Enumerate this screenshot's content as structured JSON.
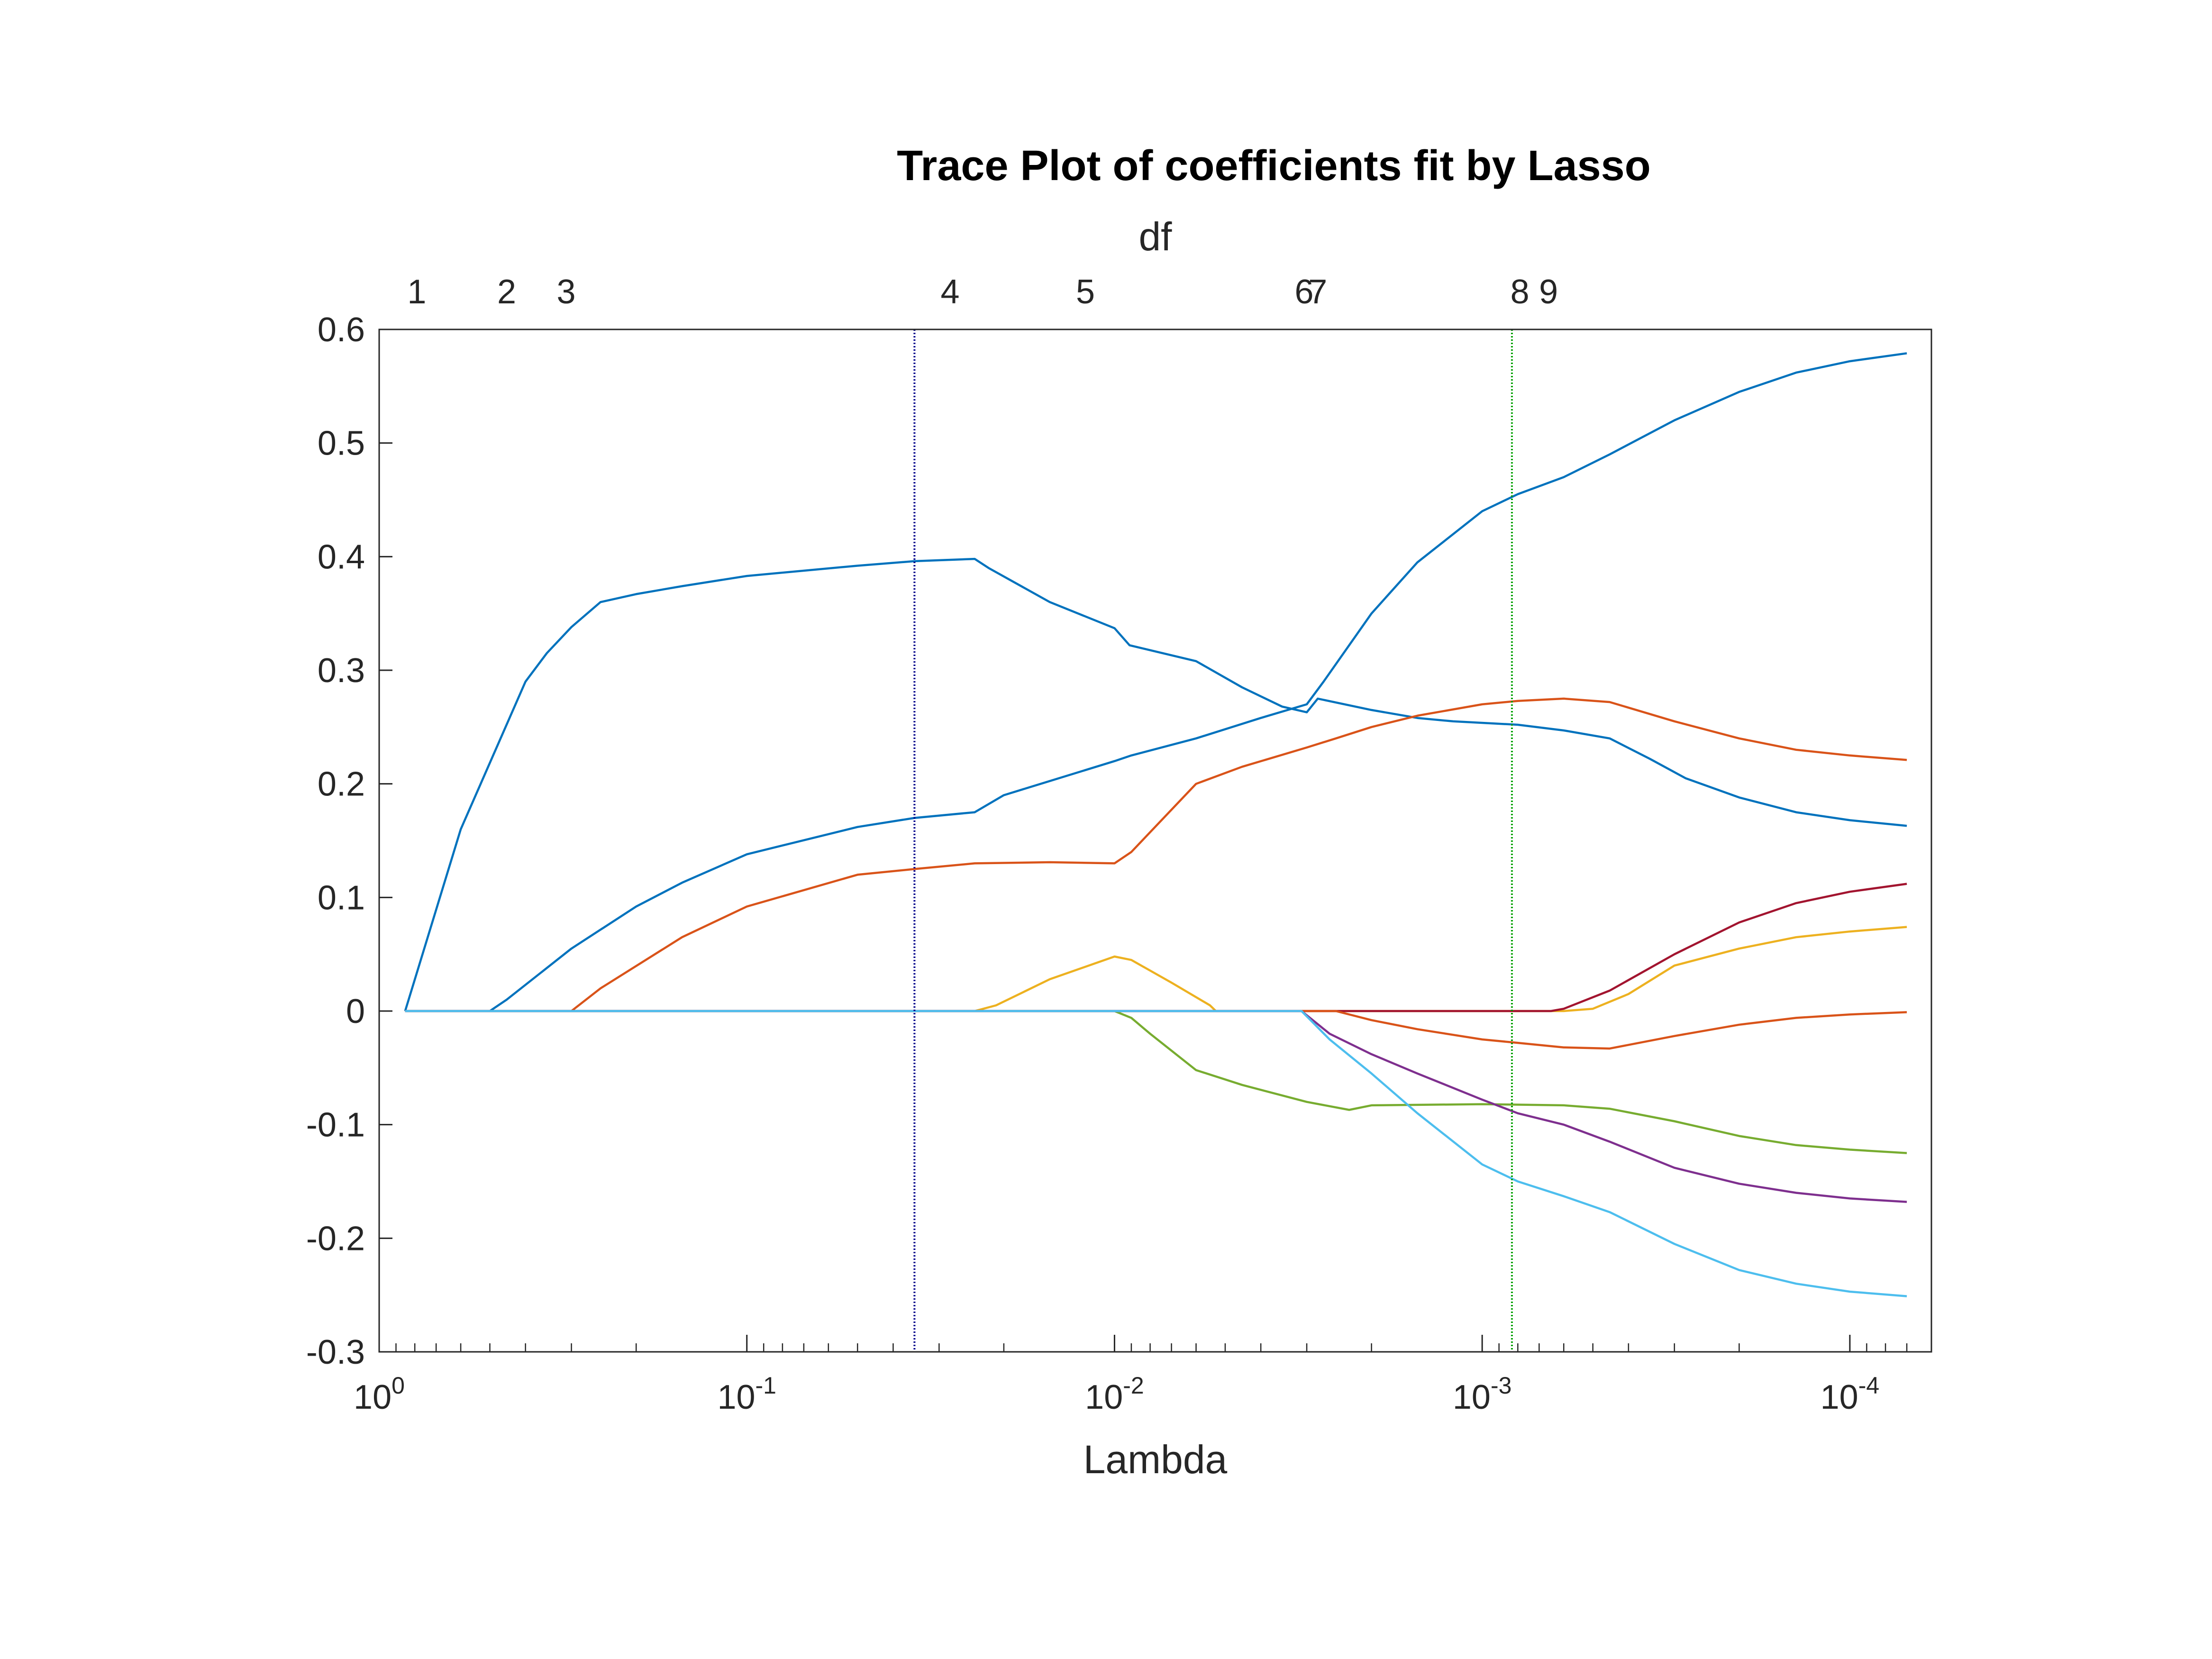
{
  "chart_data": {
    "type": "line",
    "title": "Trace Plot of coefficients fit by Lasso",
    "xlabel": "Lambda",
    "top_axis_label": "df",
    "x_scale": "log",
    "x_reversed": true,
    "xlim": [
      1,
      6e-05
    ],
    "ylim": [
      -0.3,
      0.6
    ],
    "x_ticks": [
      {
        "value": 1,
        "base": "10",
        "exp": "0"
      },
      {
        "value": 0.1,
        "base": "10",
        "exp": "-1"
      },
      {
        "value": 0.01,
        "base": "10",
        "exp": "-2"
      },
      {
        "value": 0.001,
        "base": "10",
        "exp": "-3"
      },
      {
        "value": 0.0001,
        "base": "10",
        "exp": "-4"
      }
    ],
    "y_ticks": [
      {
        "value": 0.6,
        "label": "0.6"
      },
      {
        "value": 0.5,
        "label": "0.5"
      },
      {
        "value": 0.4,
        "label": "0.4"
      },
      {
        "value": 0.3,
        "label": "0.3"
      },
      {
        "value": 0.2,
        "label": "0.2"
      },
      {
        "value": 0.1,
        "label": "0.1"
      },
      {
        "value": 0,
        "label": "0"
      },
      {
        "value": -0.1,
        "label": "-0.1"
      },
      {
        "value": -0.2,
        "label": "-0.2"
      },
      {
        "value": -0.3,
        "label": "-0.3"
      }
    ],
    "df_ticks": [
      {
        "lambda": 0.79,
        "label": "1"
      },
      {
        "lambda": 0.45,
        "label": "2"
      },
      {
        "lambda": 0.31,
        "label": "3"
      },
      {
        "lambda": 0.028,
        "label": "4"
      },
      {
        "lambda": 0.012,
        "label": "5"
      },
      {
        "lambda": 0.00305,
        "label": "6"
      },
      {
        "lambda": 0.0028,
        "label": "7"
      },
      {
        "lambda": 0.00079,
        "label": "8"
      },
      {
        "lambda": 0.00066,
        "label": "9"
      }
    ],
    "vlines": [
      {
        "lambda": 0.035,
        "color": "#00008b"
      },
      {
        "lambda": 0.00083,
        "color": "#00a000"
      }
    ],
    "series": [
      {
        "color": "#0072bd",
        "points": [
          [
            0.85,
            0
          ],
          [
            0.6,
            0.16
          ],
          [
            0.4,
            0.29
          ],
          [
            0.35,
            0.315
          ],
          [
            0.3,
            0.338
          ],
          [
            0.25,
            0.36
          ],
          [
            0.2,
            0.367
          ],
          [
            0.15,
            0.374
          ],
          [
            0.1,
            0.383
          ],
          [
            0.05,
            0.392
          ],
          [
            0.035,
            0.396
          ],
          [
            0.024,
            0.398
          ],
          [
            0.022,
            0.39
          ],
          [
            0.015,
            0.36
          ],
          [
            0.01,
            0.337
          ],
          [
            0.0091,
            0.322
          ],
          [
            0.006,
            0.308
          ],
          [
            0.0045,
            0.285
          ],
          [
            0.0035,
            0.268
          ],
          [
            0.003,
            0.263
          ],
          [
            0.0028,
            0.275
          ],
          [
            0.002,
            0.265
          ],
          [
            0.0015,
            0.258
          ],
          [
            0.0012,
            0.255
          ],
          [
            0.0008,
            0.252
          ],
          [
            0.0006,
            0.247
          ],
          [
            0.00045,
            0.24
          ],
          [
            0.00035,
            0.222
          ],
          [
            0.00028,
            0.205
          ],
          [
            0.0002,
            0.188
          ],
          [
            0.00014,
            0.175
          ],
          [
            0.0001,
            0.168
          ],
          [
            7e-05,
            0.163
          ]
        ]
      },
      {
        "color": "#0072bd",
        "points": [
          [
            0.85,
            0
          ],
          [
            0.5,
            0
          ],
          [
            0.45,
            0.01
          ],
          [
            0.3,
            0.055
          ],
          [
            0.2,
            0.092
          ],
          [
            0.15,
            0.113
          ],
          [
            0.1,
            0.138
          ],
          [
            0.05,
            0.162
          ],
          [
            0.035,
            0.17
          ],
          [
            0.024,
            0.175
          ],
          [
            0.02,
            0.19
          ],
          [
            0.01,
            0.22
          ],
          [
            0.009,
            0.225
          ],
          [
            0.006,
            0.24
          ],
          [
            0.004,
            0.258
          ],
          [
            0.003,
            0.27
          ],
          [
            0.0027,
            0.29
          ],
          [
            0.002,
            0.35
          ],
          [
            0.0015,
            0.395
          ],
          [
            0.001,
            0.44
          ],
          [
            0.0008,
            0.455
          ],
          [
            0.0006,
            0.47
          ],
          [
            0.00045,
            0.49
          ],
          [
            0.0003,
            0.52
          ],
          [
            0.0002,
            0.545
          ],
          [
            0.00014,
            0.562
          ],
          [
            0.0001,
            0.572
          ],
          [
            7e-05,
            0.579
          ]
        ]
      },
      {
        "color": "#d95319",
        "points": [
          [
            0.85,
            0
          ],
          [
            0.3,
            0
          ],
          [
            0.25,
            0.02
          ],
          [
            0.15,
            0.065
          ],
          [
            0.1,
            0.092
          ],
          [
            0.05,
            0.12
          ],
          [
            0.035,
            0.125
          ],
          [
            0.024,
            0.13
          ],
          [
            0.015,
            0.131
          ],
          [
            0.01,
            0.13
          ],
          [
            0.009,
            0.14
          ],
          [
            0.006,
            0.2
          ],
          [
            0.0045,
            0.215
          ],
          [
            0.003,
            0.232
          ],
          [
            0.0025,
            0.24
          ],
          [
            0.002,
            0.25
          ],
          [
            0.0015,
            0.26
          ],
          [
            0.001,
            0.27
          ],
          [
            0.0008,
            0.273
          ],
          [
            0.0006,
            0.275
          ],
          [
            0.00045,
            0.272
          ],
          [
            0.0003,
            0.255
          ],
          [
            0.0002,
            0.24
          ],
          [
            0.00014,
            0.23
          ],
          [
            0.0001,
            0.225
          ],
          [
            7e-05,
            0.221
          ]
        ]
      },
      {
        "color": "#edb120",
        "points": [
          [
            0.85,
            0
          ],
          [
            0.024,
            0
          ],
          [
            0.021,
            0.005
          ],
          [
            0.015,
            0.028
          ],
          [
            0.01,
            0.048
          ],
          [
            0.009,
            0.045
          ],
          [
            0.007,
            0.025
          ],
          [
            0.0055,
            0.005
          ],
          [
            0.0053,
            0
          ],
          [
            0.0006,
            0
          ],
          [
            0.0005,
            0.002
          ],
          [
            0.0004,
            0.015
          ],
          [
            0.0003,
            0.04
          ],
          [
            0.0002,
            0.055
          ],
          [
            0.00014,
            0.065
          ],
          [
            0.0001,
            0.07
          ],
          [
            7e-05,
            0.074
          ]
        ]
      },
      {
        "color": "#a2142f",
        "points": [
          [
            0.85,
            0
          ],
          [
            0.00065,
            0
          ],
          [
            0.0006,
            0.002
          ],
          [
            0.00045,
            0.018
          ],
          [
            0.0003,
            0.05
          ],
          [
            0.0002,
            0.078
          ],
          [
            0.00014,
            0.095
          ],
          [
            0.0001,
            0.105
          ],
          [
            7e-05,
            0.112
          ]
        ]
      },
      {
        "color": "#77ac30",
        "points": [
          [
            0.85,
            0
          ],
          [
            0.01,
            0
          ],
          [
            0.009,
            -0.006
          ],
          [
            0.008,
            -0.02
          ],
          [
            0.006,
            -0.052
          ],
          [
            0.0045,
            -0.065
          ],
          [
            0.003,
            -0.08
          ],
          [
            0.0023,
            -0.087
          ],
          [
            0.002,
            -0.083
          ],
          [
            0.001,
            -0.082
          ],
          [
            0.0006,
            -0.083
          ],
          [
            0.00045,
            -0.086
          ],
          [
            0.0003,
            -0.097
          ],
          [
            0.0002,
            -0.11
          ],
          [
            0.00014,
            -0.118
          ],
          [
            0.0001,
            -0.122
          ],
          [
            7e-05,
            -0.125
          ]
        ]
      },
      {
        "color": "#d95319",
        "points": [
          [
            0.85,
            0
          ],
          [
            0.0025,
            0
          ],
          [
            0.002,
            -0.008
          ],
          [
            0.0015,
            -0.016
          ],
          [
            0.001,
            -0.025
          ],
          [
            0.0008,
            -0.028
          ],
          [
            0.0006,
            -0.032
          ],
          [
            0.00045,
            -0.033
          ],
          [
            0.0003,
            -0.022
          ],
          [
            0.0002,
            -0.012
          ],
          [
            0.00014,
            -0.006
          ],
          [
            0.0001,
            -0.003
          ],
          [
            7e-05,
            -0.001
          ]
        ]
      },
      {
        "color": "#7e2f8e",
        "points": [
          [
            0.85,
            0
          ],
          [
            0.0031,
            0
          ],
          [
            0.0026,
            -0.02
          ],
          [
            0.002,
            -0.038
          ],
          [
            0.0015,
            -0.055
          ],
          [
            0.001,
            -0.078
          ],
          [
            0.0008,
            -0.09
          ],
          [
            0.0006,
            -0.1
          ],
          [
            0.00045,
            -0.115
          ],
          [
            0.0003,
            -0.138
          ],
          [
            0.0002,
            -0.152
          ],
          [
            0.00014,
            -0.16
          ],
          [
            0.0001,
            -0.165
          ],
          [
            7e-05,
            -0.168
          ]
        ]
      },
      {
        "color": "#4dbeee",
        "points": [
          [
            0.85,
            0
          ],
          [
            0.0031,
            0
          ],
          [
            0.0026,
            -0.025
          ],
          [
            0.002,
            -0.055
          ],
          [
            0.0015,
            -0.09
          ],
          [
            0.001,
            -0.135
          ],
          [
            0.0008,
            -0.15
          ],
          [
            0.0006,
            -0.163
          ],
          [
            0.00045,
            -0.177
          ],
          [
            0.0003,
            -0.205
          ],
          [
            0.0002,
            -0.228
          ],
          [
            0.00014,
            -0.24
          ],
          [
            0.0001,
            -0.247
          ],
          [
            7e-05,
            -0.251
          ]
        ]
      }
    ]
  }
}
